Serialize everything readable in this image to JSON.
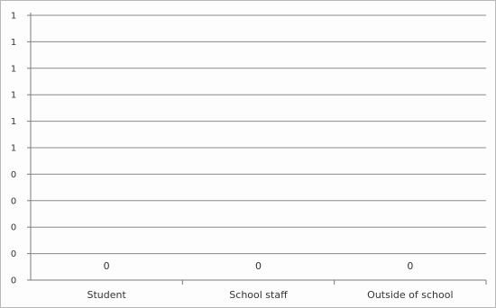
{
  "chart_data": {
    "type": "bar",
    "categories": [
      "Student",
      "School staff",
      "Outside of school"
    ],
    "values": [
      0,
      0,
      0
    ],
    "data_labels": [
      "0",
      "0",
      "0"
    ],
    "y_tick_labels": [
      "0",
      "0",
      "0",
      "0",
      "0",
      "1",
      "1",
      "1",
      "1",
      "1",
      "1"
    ],
    "grid": true,
    "legend": "none",
    "colors": {
      "gridline": "#8a8a8a",
      "axis": "#7a7a7a",
      "text": "#333333"
    }
  }
}
